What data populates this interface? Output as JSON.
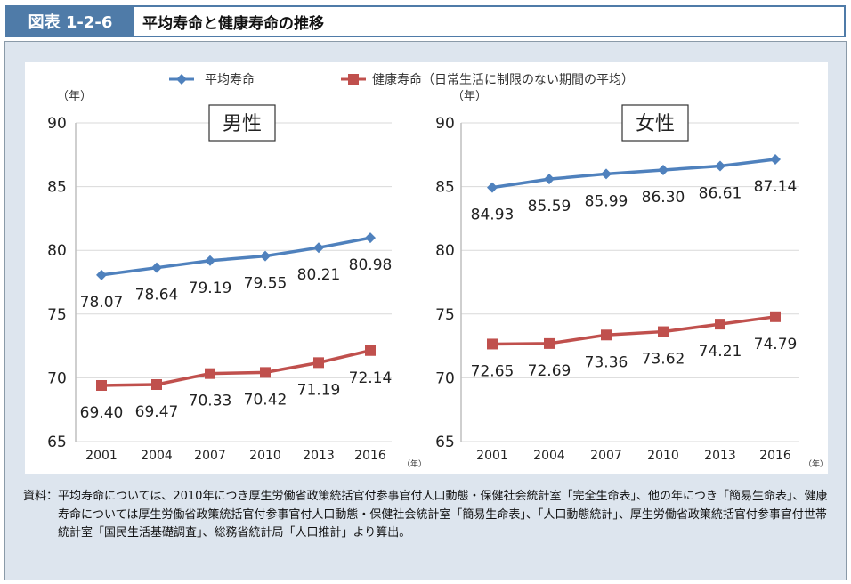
{
  "header": {
    "figure_number": "図表 1-2-6",
    "title": "平均寿命と健康寿命の推移"
  },
  "legend": [
    {
      "name": "平均寿命",
      "marker": "diamond",
      "color": "#4f81bd"
    },
    {
      "name": "健康寿命（日常生活に制限のない期間の平均）",
      "marker": "square",
      "color": "#c0504d"
    }
  ],
  "chart_data": [
    {
      "type": "line",
      "title": "男性",
      "ylabel": "（年）",
      "xlabel": "（年）",
      "ylim": [
        65,
        90
      ],
      "yticks": [
        65,
        70,
        75,
        80,
        85,
        90
      ],
      "x": [
        "2001",
        "2004",
        "2007",
        "2010",
        "2013",
        "2016"
      ],
      "series": [
        {
          "name": "平均寿命",
          "color": "#4f81bd",
          "values": [
            78.07,
            78.64,
            79.19,
            79.55,
            80.21,
            80.98
          ],
          "labels": [
            "78.07",
            "78.64",
            "79.19",
            "79.55",
            "80.21",
            "80.98"
          ]
        },
        {
          "name": "健康寿命（日常生活に制限のない期間の平均）",
          "color": "#c0504d",
          "values": [
            69.4,
            69.47,
            70.33,
            70.42,
            71.19,
            72.14
          ],
          "labels": [
            "69.40",
            "69.47",
            "70.33",
            "70.42",
            "71.19",
            "72.14"
          ]
        }
      ]
    },
    {
      "type": "line",
      "title": "女性",
      "ylabel": "（年）",
      "xlabel": "（年）",
      "ylim": [
        65,
        90
      ],
      "yticks": [
        65,
        70,
        75,
        80,
        85,
        90
      ],
      "x": [
        "2001",
        "2004",
        "2007",
        "2010",
        "2013",
        "2016"
      ],
      "series": [
        {
          "name": "平均寿命",
          "color": "#4f81bd",
          "values": [
            84.93,
            85.59,
            85.99,
            86.3,
            86.61,
            87.14
          ],
          "labels": [
            "84.93",
            "85.59",
            "85.99",
            "86.30",
            "86.61",
            "87.14"
          ]
        },
        {
          "name": "健康寿命（日常生活に制限のない期間の平均）",
          "color": "#c0504d",
          "values": [
            72.65,
            72.69,
            73.36,
            73.62,
            74.21,
            74.79
          ],
          "labels": [
            "72.65",
            "72.69",
            "73.36",
            "73.62",
            "74.21",
            "74.79"
          ]
        }
      ]
    }
  ],
  "source": {
    "label": "資料：",
    "text": "平均寿命については、2010年につき厚生労働省政策統括官付参事官付人口動態・保健社会統計室「完全生命表」、他の年につき「簡易生命表」、健康寿命については厚生労働省政策統括官付参事官付人口動態・保健社会統計室「簡易生命表」、「人口動態統計」、厚生労働省政策統括官付参事官付世帯統計室「国民生活基礎調査」、総務省統計局「人口推計」より算出。"
  }
}
